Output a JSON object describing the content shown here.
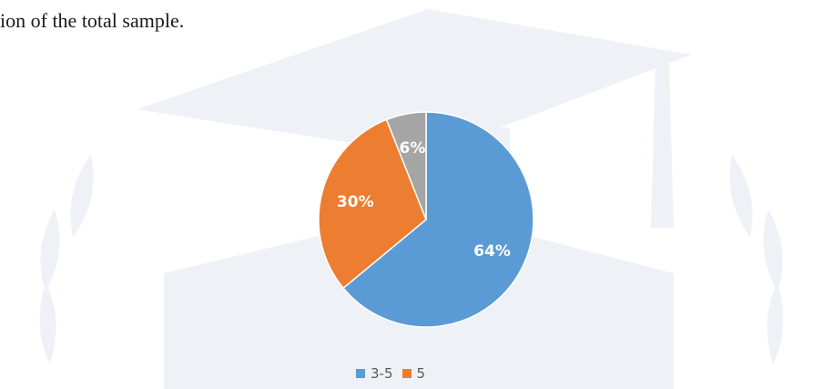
{
  "intro": {
    "text": "ion of the total sample."
  },
  "chart_data": {
    "type": "pie",
    "title": "",
    "slices": [
      {
        "label": "3-5",
        "value": 64,
        "display": "64%",
        "color": "#5b9bd5"
      },
      {
        "label": "5",
        "value": 30,
        "display": "30%",
        "color": "#ed7d31"
      },
      {
        "label": "",
        "value": 6,
        "display": "6%",
        "color": "#a5a5a5"
      }
    ],
    "start": "12 o'clock",
    "direction": "clockwise",
    "legend": {
      "placement": "bottom",
      "entries": [
        {
          "label": "3-5",
          "color": "#5b9bd5"
        },
        {
          "label": "5",
          "color": "#ed7d31"
        }
      ]
    }
  }
}
